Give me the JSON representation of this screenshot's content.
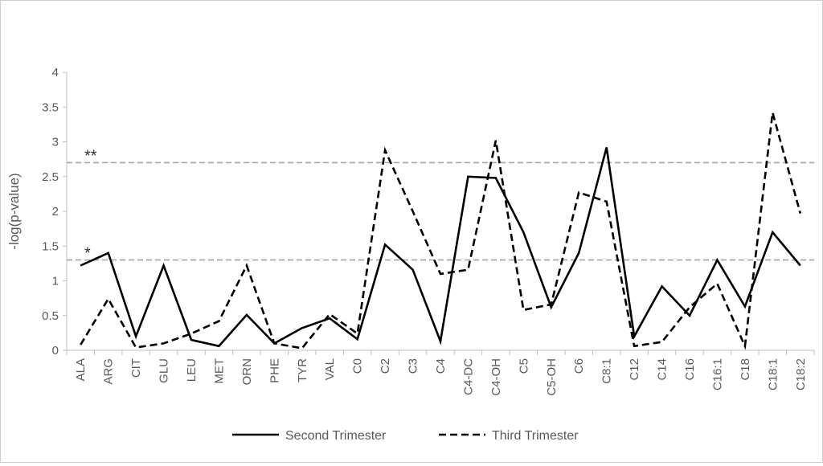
{
  "chart_data": {
    "type": "line",
    "ylabel": "-log(p-value)",
    "xlabel": "",
    "ylim": [
      0,
      4
    ],
    "y_ticks": [
      "0",
      "0.5",
      "1",
      "1.5",
      "2",
      "2.5",
      "3",
      "3.5",
      "4"
    ],
    "categories": [
      "ALA",
      "ARG",
      "CIT",
      "GLU",
      "LEU",
      "MET",
      "ORN",
      "PHE",
      "TYR",
      "VAL",
      "C0",
      "C2",
      "C3",
      "C4",
      "C4-DC",
      "C4-OH",
      "C5",
      "C5-OH",
      "C6",
      "C8:1",
      "C12",
      "C14",
      "C16",
      "C16:1",
      "C18",
      "C18:1",
      "C18:2"
    ],
    "series": [
      {
        "name": "Second Trimester",
        "style": "solid",
        "color": "#000000",
        "values": [
          1.22,
          1.4,
          0.2,
          1.22,
          0.15,
          0.06,
          0.51,
          0.1,
          0.32,
          0.46,
          0.16,
          1.52,
          1.16,
          0.13,
          2.5,
          2.48,
          1.7,
          0.62,
          1.4,
          2.92,
          0.2,
          0.92,
          0.5,
          1.3,
          0.63,
          1.7,
          1.22
        ]
      },
      {
        "name": "Third Trimester",
        "style": "dashed",
        "color": "#000000",
        "values": [
          0.08,
          0.74,
          0.04,
          0.1,
          0.24,
          0.42,
          1.22,
          0.1,
          0.03,
          0.52,
          0.24,
          2.88,
          2.0,
          1.1,
          1.16,
          3.02,
          0.58,
          0.66,
          2.27,
          2.14,
          0.06,
          0.12,
          0.62,
          0.96,
          0.06,
          3.42,
          1.97
        ]
      }
    ],
    "reference_lines": [
      {
        "value": 1.3,
        "label": "*",
        "color": "#a6a6a6"
      },
      {
        "value": 2.7,
        "label": "**",
        "color": "#a6a6a6"
      }
    ],
    "grid": false,
    "legend_position": "bottom"
  }
}
